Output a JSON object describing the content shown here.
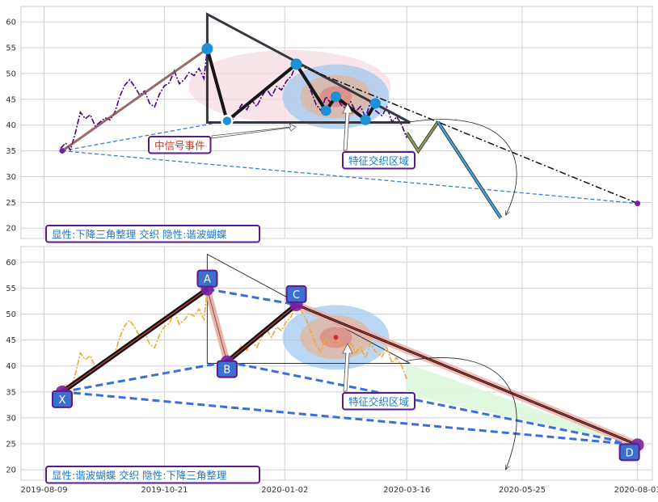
{
  "chart_data": [
    {
      "type": "line",
      "panel": "top",
      "title": "",
      "xlabel": "",
      "ylabel": "",
      "ylim": [
        18,
        63
      ],
      "yticks": [
        20,
        25,
        30,
        35,
        40,
        45,
        50,
        55,
        60
      ],
      "grid": true,
      "legend": "none",
      "price_color": "#4b0082",
      "price_series": [
        [
          "2019-08-19",
          35.5
        ],
        [
          "2019-08-22",
          36.5
        ],
        [
          "2019-08-25",
          35.2
        ],
        [
          "2019-08-28",
          38.5
        ],
        [
          "2019-08-31",
          42.5
        ],
        [
          "2019-09-03",
          41.2
        ],
        [
          "2019-09-06",
          42.0
        ],
        [
          "2019-09-09",
          39.8
        ],
        [
          "2019-09-12",
          40.6
        ],
        [
          "2019-09-15",
          41.4
        ],
        [
          "2019-09-18",
          41.0
        ],
        [
          "2019-09-21",
          42.5
        ],
        [
          "2019-09-24",
          45.6
        ],
        [
          "2019-09-27",
          47.8
        ],
        [
          "2019-09-30",
          48.8
        ],
        [
          "2019-10-03",
          47.4
        ],
        [
          "2019-10-06",
          45.8
        ],
        [
          "2019-10-09",
          46.6
        ],
        [
          "2019-10-12",
          44.2
        ],
        [
          "2019-10-15",
          43.5
        ],
        [
          "2019-10-18",
          46.0
        ],
        [
          "2019-10-21",
          47.6
        ],
        [
          "2019-10-24",
          48.2
        ],
        [
          "2019-10-27",
          50.5
        ],
        [
          "2019-10-30",
          48.0
        ],
        [
          "2019-11-02",
          48.8
        ],
        [
          "2019-11-05",
          50.2
        ],
        [
          "2019-11-08",
          49.6
        ],
        [
          "2019-11-11",
          51.0
        ],
        [
          "2019-11-14",
          49.0
        ],
        [
          "2019-11-16",
          54.8
        ],
        [
          "2019-11-19",
          52.0
        ],
        [
          "2019-11-22",
          47.5
        ],
        [
          "2019-11-25",
          44.5
        ],
        [
          "2019-11-28",
          41.2
        ],
        [
          "2019-12-01",
          40.8
        ],
        [
          "2019-12-04",
          42.5
        ],
        [
          "2019-12-07",
          44.0
        ],
        [
          "2019-12-10",
          43.0
        ],
        [
          "2019-12-13",
          44.8
        ],
        [
          "2019-12-16",
          43.6
        ],
        [
          "2019-12-19",
          45.5
        ],
        [
          "2019-12-22",
          47.0
        ],
        [
          "2019-12-25",
          45.5
        ],
        [
          "2019-12-28",
          47.5
        ],
        [
          "2019-12-31",
          46.8
        ],
        [
          "2020-01-03",
          48.5
        ],
        [
          "2020-01-06",
          49.5
        ],
        [
          "2020-01-09",
          51.8
        ],
        [
          "2020-01-12",
          50.6
        ],
        [
          "2020-01-15",
          49.0
        ],
        [
          "2020-01-18",
          46.5
        ],
        [
          "2020-01-21",
          44.0
        ],
        [
          "2020-01-24",
          42.8
        ],
        [
          "2020-01-27",
          45.5
        ],
        [
          "2020-01-30",
          44.2
        ],
        [
          "2020-02-02",
          45.8
        ],
        [
          "2020-02-05",
          44.0
        ],
        [
          "2020-02-08",
          43.2
        ],
        [
          "2020-02-11",
          44.5
        ],
        [
          "2020-02-14",
          42.6
        ],
        [
          "2020-02-17",
          43.6
        ],
        [
          "2020-02-20",
          41.5
        ],
        [
          "2020-02-23",
          44.4
        ],
        [
          "2020-02-26",
          42.8
        ],
        [
          "2020-03-01",
          41.8
        ],
        [
          "2020-03-04",
          43.5
        ],
        [
          "2020-03-07",
          40.6
        ],
        [
          "2020-03-10",
          41.6
        ],
        [
          "2020-03-13",
          40.0
        ],
        [
          "2020-03-16",
          37.5
        ]
      ],
      "pattern_polyline": [
        [
          "2019-11-16",
          54.8
        ],
        [
          "2019-11-28",
          40.8
        ],
        [
          "2020-01-09",
          51.8
        ],
        [
          "2020-01-27",
          42.8
        ],
        [
          "2020-02-02",
          45.5
        ],
        [
          "2020-02-20",
          41.0
        ],
        [
          "2020-02-26",
          44.2
        ]
      ],
      "pivot_points": [
        [
          "2019-11-16",
          54.8
        ],
        [
          "2019-11-28",
          40.8
        ],
        [
          "2020-01-09",
          51.8
        ],
        [
          "2020-01-27",
          42.8
        ],
        [
          "2020-02-02",
          45.5
        ],
        [
          "2020-02-20",
          41.0
        ],
        [
          "2020-02-26",
          44.2
        ]
      ],
      "xabcd_start_point": [
        "2019-08-20",
        35.0
      ],
      "d_point": [
        "2020-08-03",
        24.8
      ],
      "triangle_vertices": [
        [
          "2019-11-16",
          61.5
        ],
        [
          "2019-11-16",
          40.5
        ],
        [
          "2020-03-18",
          40.5
        ]
      ],
      "triangle_color": "#363640",
      "resistance_line": [
        [
          "2020-01-09",
          51.8
        ],
        [
          "2020-08-03",
          24.8
        ]
      ],
      "xd_line": [
        [
          "2019-08-20",
          35.0
        ],
        [
          "2020-08-03",
          24.8
        ]
      ],
      "xb_line": [
        [
          "2019-08-20",
          35.0
        ],
        [
          "2019-11-28",
          40.8
        ]
      ],
      "xa_line": [
        [
          "2019-08-20",
          35.0
        ],
        [
          "2019-11-16",
          54.8
        ]
      ],
      "projection_path": [
        [
          "2020-03-16",
          38.5
        ],
        [
          "2020-03-23",
          35.0
        ],
        [
          "2020-04-04",
          40.6
        ],
        [
          "2020-05-12",
          22.0
        ]
      ],
      "projection_colors": [
        "#8c9b5e",
        "#4a9fd6"
      ],
      "signal_event_label": "中信号事件",
      "intersection_label": "特征交织区域",
      "bottom_label": "显性:下降三角整理 交织 隐性:谐波蝴蝶"
    },
    {
      "type": "line",
      "panel": "bottom",
      "title": "",
      "xlabel": "",
      "ylabel": "",
      "ylim": [
        18,
        63
      ],
      "yticks": [
        20,
        25,
        30,
        35,
        40,
        45,
        50,
        55,
        60
      ],
      "grid": true,
      "legend": "none",
      "price_color": "#f0a830",
      "xtick_labels": [
        "2019-08-09",
        "2019-10-21",
        "2020-01-02",
        "2020-03-16",
        "2020-05-25",
        "2020-08-03"
      ],
      "xabcd": [
        {
          "label": "X",
          "date": "2019-08-20",
          "value": 35.0
        },
        {
          "label": "A",
          "date": "2019-11-16",
          "value": 54.8
        },
        {
          "label": "B",
          "date": "2019-11-28",
          "value": 40.8
        },
        {
          "label": "C",
          "date": "2020-01-09",
          "value": 51.8
        },
        {
          "label": "D",
          "date": "2020-08-03",
          "value": 24.8
        }
      ],
      "pattern_color": "#3a6fd8",
      "leg_color": "#111111",
      "inner_leg_color": "#d84040",
      "triangle_vertices": [
        [
          "2019-11-16",
          61.5
        ],
        [
          "2019-11-16",
          40.5
        ],
        [
          "2020-03-18",
          40.5
        ]
      ],
      "intersection_label": "特征交织区域",
      "bottom_label": "显性:谐波蝴蝶 交织 隐性:下降三角整理"
    }
  ],
  "colors": {
    "label_border": "#5a1a8c",
    "label_text": "#1a78c2",
    "signal_text": "#c0392b",
    "marker_blue": "#1e90d6",
    "marker_purple": "#7b1fa2",
    "badge_fill": "#3b6fd0",
    "zone_outer": "#9cc8ee",
    "zone_mid": "#e3b49a",
    "zone_inner": "#e07878",
    "pink_zone": "#f6dce2",
    "green_zone": "#ddf7dd"
  }
}
